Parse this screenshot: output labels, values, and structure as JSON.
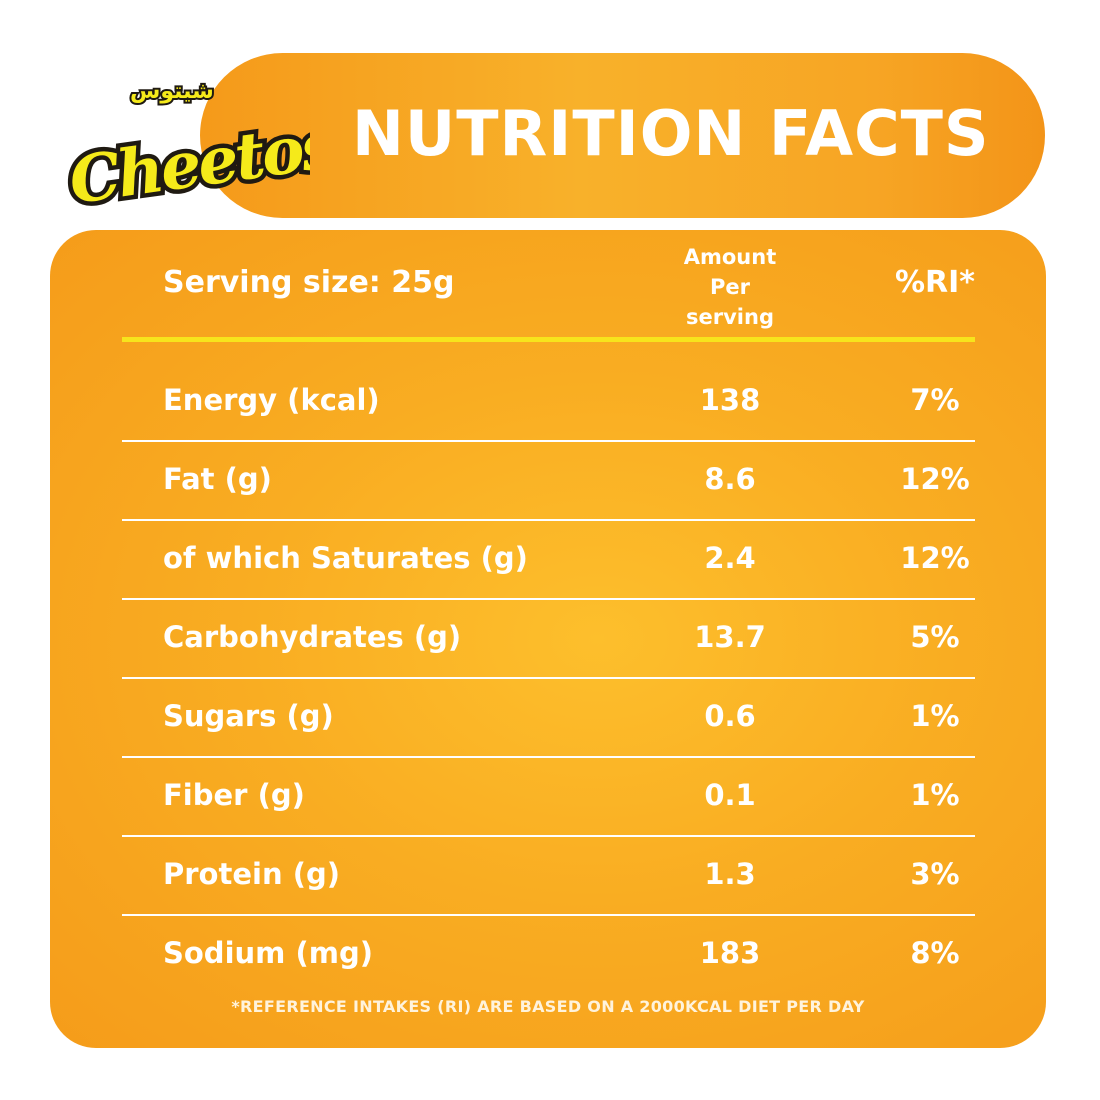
{
  "brand": {
    "logo_text": "Cheetos",
    "logo_arabic_text": "شيتوس",
    "colors": {
      "orange": "#f59a1a",
      "yellow": "#f7e41c",
      "logo_yellow": "#f5ea1a",
      "logo_outline": "#1f1a12"
    }
  },
  "header": {
    "title": "NUTRITION FACTS"
  },
  "table": {
    "serving_label": "Serving size: 25g",
    "amount_header_lines": [
      "Amount",
      "Per",
      "serving"
    ],
    "ri_header": "%RI*",
    "rows": [
      {
        "label": "Energy (kcal)",
        "amount": "138",
        "ri": "7%"
      },
      {
        "label": "Fat (g)",
        "amount": "8.6",
        "ri": "12%"
      },
      {
        "label": "of which Saturates (g)",
        "amount": "2.4",
        "ri": "12%"
      },
      {
        "label": "Carbohydrates (g)",
        "amount": "13.7",
        "ri": "5%"
      },
      {
        "label": "Sugars (g)",
        "amount": "0.6",
        "ri": "1%"
      },
      {
        "label": "Fiber (g)",
        "amount": "0.1",
        "ri": "1%"
      },
      {
        "label": "Protein (g)",
        "amount": "1.3",
        "ri": "3%"
      },
      {
        "label": "Sodium (mg)",
        "amount": "183",
        "ri": "8%"
      }
    ],
    "footnote": "*REFERENCE INTAKES (RI) ARE BASED ON A 2000KCAL DIET PER DAY"
  }
}
